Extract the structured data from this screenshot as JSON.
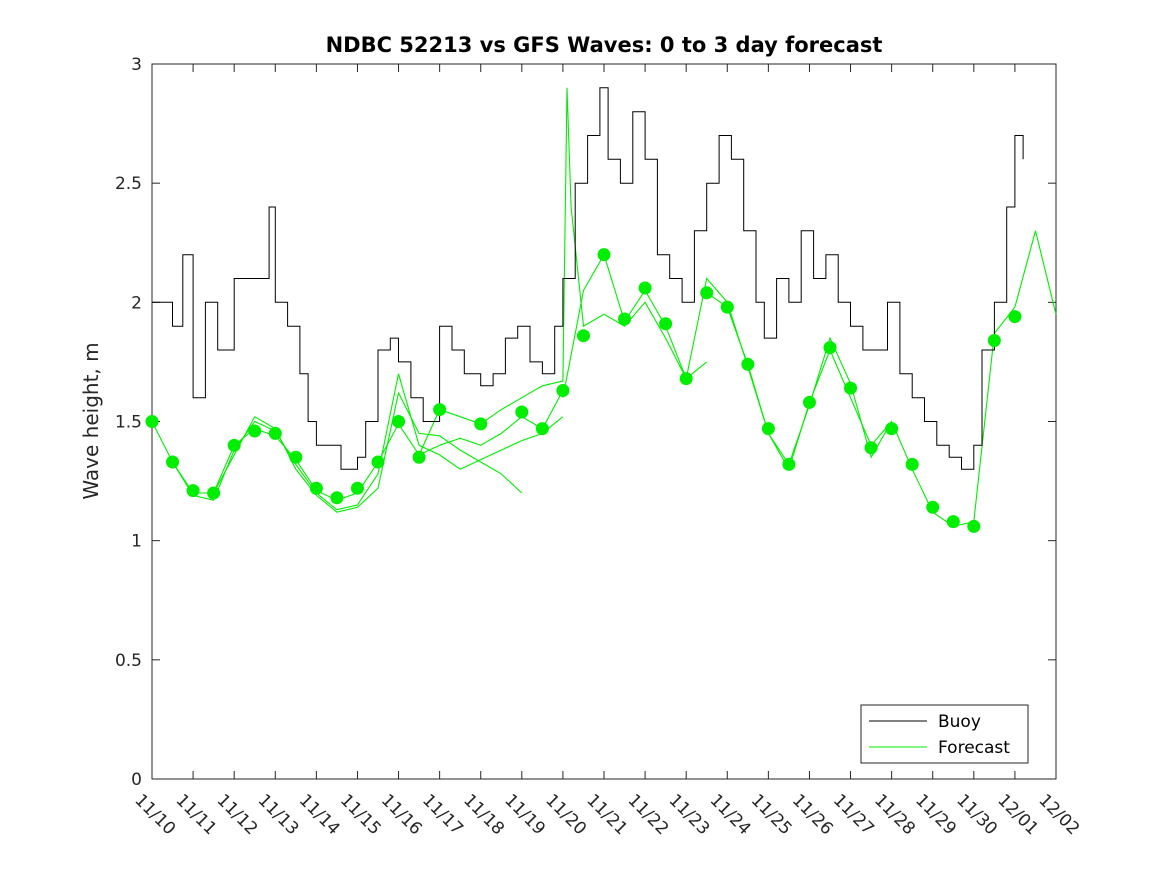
{
  "chart_data": {
    "type": "line",
    "title": "NDBC 52213 vs GFS Waves: 0 to 3 day forecast",
    "xlabel": "",
    "ylabel": "Wave height, m",
    "ylim": [
      0,
      3
    ],
    "yticks": [
      0,
      0.5,
      1,
      1.5,
      2,
      2.5,
      3
    ],
    "ytick_labels": [
      "0",
      "0.5",
      "1",
      "1.5",
      "2",
      "2.5",
      "3"
    ],
    "xlim": [
      0,
      22
    ],
    "x_unit": "days since 11/10",
    "xticks": [
      0,
      1,
      2,
      3,
      4,
      5,
      6,
      7,
      8,
      9,
      10,
      11,
      12,
      13,
      14,
      15,
      16,
      17,
      18,
      19,
      20,
      21,
      22
    ],
    "xtick_labels": [
      "11/10",
      "11/11",
      "11/12",
      "11/13",
      "11/14",
      "11/15",
      "11/16",
      "11/17",
      "11/18",
      "11/19",
      "11/20",
      "11/21",
      "11/22",
      "11/23",
      "11/24",
      "11/25",
      "11/26",
      "11/27",
      "11/28",
      "11/29",
      "11/30",
      "12/01",
      "12/02"
    ],
    "legend": {
      "position": "bottom-right",
      "entries": [
        "Buoy",
        "Forecast"
      ]
    },
    "colors": {
      "buoy": "#000000",
      "forecast": "#00ee00"
    },
    "buoy": {
      "name": "Buoy",
      "x": [
        0,
        0.5,
        0.75,
        1,
        1.3,
        1.6,
        2,
        2.5,
        2.85,
        3,
        3.3,
        3.6,
        3.8,
        4,
        4.3,
        4.6,
        5,
        5.2,
        5.5,
        5.8,
        6,
        6.3,
        6.6,
        7,
        7.3,
        7.6,
        8,
        8.3,
        8.6,
        8.9,
        9.2,
        9.5,
        9.8,
        10,
        10.3,
        10.6,
        10.9,
        11.1,
        11.4,
        11.7,
        12,
        12.3,
        12.6,
        12.9,
        13.2,
        13.5,
        13.8,
        14.1,
        14.4,
        14.7,
        14.9,
        15.2,
        15.5,
        15.8,
        16.1,
        16.4,
        16.7,
        17,
        17.3,
        17.6,
        17.9,
        18.2,
        18.5,
        18.8,
        19.1,
        19.4,
        19.7,
        20,
        20.2,
        20.5,
        20.8,
        21,
        21.2
      ],
      "y": [
        2.0,
        1.9,
        2.2,
        1.6,
        2.0,
        1.8,
        2.1,
        2.1,
        2.4,
        2.0,
        1.9,
        1.7,
        1.5,
        1.4,
        1.4,
        1.3,
        1.35,
        1.5,
        1.8,
        1.85,
        1.75,
        1.6,
        1.5,
        1.9,
        1.8,
        1.7,
        1.65,
        1.7,
        1.85,
        1.9,
        1.75,
        1.7,
        1.9,
        2.1,
        2.5,
        2.7,
        2.9,
        2.6,
        2.5,
        2.8,
        2.6,
        2.2,
        2.1,
        2.0,
        2.3,
        2.5,
        2.7,
        2.6,
        2.3,
        2.0,
        1.85,
        2.1,
        2.0,
        2.3,
        2.1,
        2.2,
        2.0,
        1.9,
        1.8,
        1.8,
        2.0,
        1.7,
        1.6,
        1.5,
        1.4,
        1.35,
        1.3,
        1.4,
        1.8,
        2.0,
        2.4,
        2.7,
        2.6
      ],
      "nominal_series_fields": "see nominal_series_info"
    },
    "nominal_series_info": "Buoy and Forecast are separate series; forecast has 6 runs plus analysis markers",
    "forecast": {
      "name": "Forecast",
      "runs": [
        {
          "x": [
            0,
            0.5,
            1,
            1.5,
            2,
            2.5,
            3,
            3.5,
            4,
            4.5,
            5,
            5.5,
            6,
            6.5,
            7,
            7.5,
            8,
            8.5,
            9,
            9.5,
            10
          ],
          "y": [
            1.5,
            1.33,
            1.2,
            1.2,
            1.4,
            1.47,
            1.44,
            1.34,
            1.21,
            1.17,
            1.2,
            1.33,
            1.49,
            1.36,
            1.4,
            1.43,
            1.4,
            1.45,
            1.52,
            1.47,
            1.63
          ]
        },
        {
          "x": [
            0.5,
            1,
            1.5,
            2,
            2.5,
            3,
            3.5,
            4,
            4.5,
            5,
            5.5,
            6,
            6.5,
            7,
            7.5,
            8,
            8.5,
            9,
            9.5,
            10
          ],
          "y": [
            1.33,
            1.19,
            1.17,
            1.38,
            1.5,
            1.46,
            1.32,
            1.2,
            1.13,
            1.15,
            1.28,
            1.7,
            1.4,
            1.36,
            1.3,
            1.34,
            1.38,
            1.42,
            1.45,
            1.52
          ]
        },
        {
          "x": [
            1.5,
            2,
            2.5,
            3,
            3.5,
            4,
            4.5,
            5,
            5.5,
            6,
            6.5,
            7,
            7.5,
            8,
            8.5,
            9
          ],
          "y": [
            1.2,
            1.36,
            1.52,
            1.47,
            1.3,
            1.19,
            1.12,
            1.14,
            1.22,
            1.62,
            1.45,
            1.44,
            1.38,
            1.33,
            1.28,
            1.2
          ]
        },
        {
          "x": [
            6.5,
            7,
            7.5,
            8,
            8.5,
            9,
            9.5,
            10,
            10.1,
            10.2,
            10.5,
            11,
            11.5,
            12,
            12.5,
            13,
            13.5
          ],
          "y": [
            1.36,
            1.55,
            1.52,
            1.49,
            1.55,
            1.6,
            1.65,
            1.67,
            2.9,
            2.4,
            1.9,
            1.95,
            1.9,
            2.0,
            1.85,
            1.68,
            1.75
          ]
        },
        {
          "x": [
            10,
            10.5,
            11,
            11.5,
            12,
            12.5,
            13,
            13.5,
            14,
            14.5,
            15,
            15.5,
            16,
            16.5,
            17,
            17.5,
            18
          ],
          "y": [
            1.6,
            2.05,
            2.2,
            1.92,
            2.05,
            1.9,
            1.68,
            2.1,
            2.0,
            1.73,
            1.45,
            1.3,
            1.58,
            1.8,
            1.6,
            1.4,
            1.5
          ]
        },
        {
          "x": [
            13.5,
            14,
            14.5,
            15,
            15.5,
            16,
            16.5,
            17,
            17.5,
            18,
            18.5,
            19,
            19.5,
            20,
            20.5,
            21,
            21.5,
            22
          ],
          "y": [
            2.04,
            1.98,
            1.74,
            1.45,
            1.32,
            1.57,
            1.85,
            1.66,
            1.35,
            1.5,
            1.3,
            1.12,
            1.06,
            1.08,
            1.87,
            1.98,
            2.3,
            1.95
          ]
        }
      ],
      "markers": {
        "x": [
          0,
          0.5,
          1,
          1.5,
          2,
          2.5,
          3,
          3.5,
          4,
          4.5,
          5,
          5.5,
          6,
          6.5,
          7,
          8,
          9,
          9.5,
          10,
          10.5,
          11,
          11.5,
          12,
          12.5,
          13,
          13.5,
          14,
          14.5,
          15,
          15.5,
          16,
          16.5,
          17,
          17.5,
          18,
          18.5,
          19,
          19.5,
          20,
          20.5,
          21
        ],
        "y": [
          1.5,
          1.33,
          1.21,
          1.2,
          1.4,
          1.46,
          1.45,
          1.35,
          1.22,
          1.18,
          1.22,
          1.33,
          1.5,
          1.35,
          1.55,
          1.49,
          1.54,
          1.47,
          1.63,
          1.86,
          2.2,
          1.93,
          2.06,
          1.91,
          1.68,
          2.04,
          1.98,
          1.74,
          1.47,
          1.32,
          1.58,
          1.81,
          1.64,
          1.39,
          1.47,
          1.32,
          1.14,
          1.08,
          1.06,
          1.84,
          1.94
        ]
      }
    }
  }
}
